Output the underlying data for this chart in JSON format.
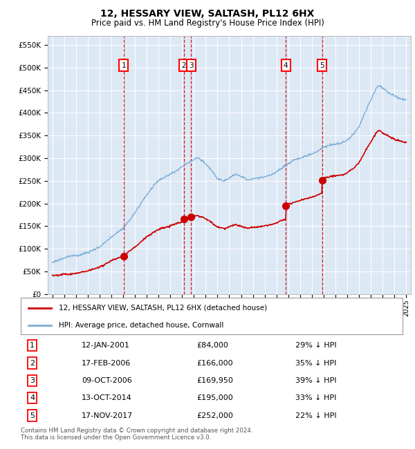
{
  "title": "12, HESSARY VIEW, SALTASH, PL12 6HX",
  "subtitle": "Price paid vs. HM Land Registry's House Price Index (HPI)",
  "ylim": [
    0,
    570000
  ],
  "yticks": [
    0,
    50000,
    100000,
    150000,
    200000,
    250000,
    300000,
    350000,
    400000,
    450000,
    500000,
    550000
  ],
  "plot_bg_color": "#dde8f5",
  "red_color": "#cc0000",
  "blue_color": "#7aadd4",
  "sale_x": [
    2001.04,
    2006.13,
    2006.77,
    2014.79,
    2017.88
  ],
  "sale_y": [
    84000,
    166000,
    169950,
    195000,
    252000
  ],
  "legend_property": "12, HESSARY VIEW, SALTASH, PL12 6HX (detached house)",
  "legend_hpi": "HPI: Average price, detached house, Cornwall",
  "footer": "Contains HM Land Registry data © Crown copyright and database right 2024.\nThis data is licensed under the Open Government Licence v3.0.",
  "table_rows": [
    [
      "1",
      "12-JAN-2001",
      "£84,000",
      "29% ↓ HPI"
    ],
    [
      "2",
      "17-FEB-2006",
      "£166,000",
      "35% ↓ HPI"
    ],
    [
      "3",
      "09-OCT-2006",
      "£169,950",
      "39% ↓ HPI"
    ],
    [
      "4",
      "13-OCT-2014",
      "£195,000",
      "33% ↓ HPI"
    ],
    [
      "5",
      "17-NOV-2017",
      "£252,000",
      "22% ↓ HPI"
    ]
  ]
}
